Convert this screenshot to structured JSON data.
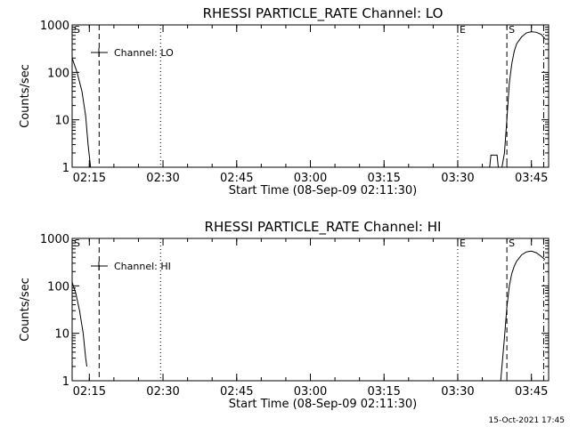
{
  "footer_timestamp": "15-Oct-2021 17:45",
  "chart_data": [
    {
      "type": "line",
      "title": "RHESSI PARTICLE_RATE Channel: LO",
      "xlabel": "Start Time (08-Sep-09 02:11:30)",
      "ylabel": "Counts/sec",
      "yscale": "log",
      "xlim": [
        "02:11:30",
        "03:48:30"
      ],
      "ylim": [
        1,
        1000
      ],
      "x_ticks": [
        "02:15",
        "02:30",
        "02:45",
        "03:00",
        "03:15",
        "03:30",
        "03:45"
      ],
      "y_ticks": [
        "1",
        "10",
        "100",
        "1000"
      ],
      "legend": {
        "label": "Channel: LO",
        "placement": "top-left"
      },
      "markers": [
        {
          "label": "S",
          "time": "02:11:30",
          "style": "dashed"
        },
        {
          "label": "",
          "time": "02:17:00",
          "style": "dashed"
        },
        {
          "label": "",
          "time": "02:29:30",
          "style": "dotted"
        },
        {
          "label": "E",
          "time": "03:30:00",
          "style": "dotted"
        },
        {
          "label": "S",
          "time": "03:40:00",
          "style": "dashed"
        },
        {
          "label": "",
          "time": "03:47:30",
          "style": "dashdot"
        }
      ],
      "series": [
        {
          "segments": [
            {
              "x": [
                "02:11:30",
                "02:12:30",
                "02:13:30",
                "02:14:15",
                "02:14:45",
                "02:15:15"
              ],
              "y": [
                200,
                100,
                40,
                12,
                3,
                1
              ]
            },
            {
              "x": [
                "03:36:30",
                "03:36:45",
                "03:37:00",
                "03:38:00",
                "03:38:15",
                "03:38:30"
              ],
              "y": [
                1,
                1.8,
                1.8,
                1.8,
                1,
                1
              ]
            },
            {
              "x": [
                "03:39:00",
                "03:39:30",
                "03:40:00",
                "03:40:30",
                "03:41:00",
                "03:41:30",
                "03:42:00",
                "03:43:00",
                "03:44:00",
                "03:45:00",
                "03:46:00",
                "03:47:00",
                "03:47:45"
              ],
              "y": [
                1,
                2,
                10,
                60,
                150,
                280,
                400,
                560,
                680,
                720,
                700,
                630,
                510
              ]
            }
          ]
        }
      ]
    },
    {
      "type": "line",
      "title": "RHESSI PARTICLE_RATE Channel: HI",
      "xlabel": "Start Time (08-Sep-09 02:11:30)",
      "ylabel": "Counts/sec",
      "yscale": "log",
      "xlim": [
        "02:11:30",
        "03:48:30"
      ],
      "ylim": [
        1,
        1000
      ],
      "x_ticks": [
        "02:15",
        "02:30",
        "02:45",
        "03:00",
        "03:15",
        "03:30",
        "03:45"
      ],
      "y_ticks": [
        "1",
        "10",
        "100",
        "1000"
      ],
      "legend": {
        "label": "Channel: HI",
        "placement": "top-left"
      },
      "markers": [
        {
          "label": "S",
          "time": "02:11:30",
          "style": "dashed"
        },
        {
          "label": "",
          "time": "02:17:00",
          "style": "dashed"
        },
        {
          "label": "",
          "time": "02:29:30",
          "style": "dotted"
        },
        {
          "label": "E",
          "time": "03:30:00",
          "style": "dotted"
        },
        {
          "label": "S",
          "time": "03:40:00",
          "style": "dashed"
        },
        {
          "label": "",
          "time": "03:47:30",
          "style": "dashdot"
        }
      ],
      "series": [
        {
          "segments": [
            {
              "x": [
                "02:11:30",
                "02:12:15",
                "02:13:00",
                "02:13:45",
                "02:14:15",
                "02:14:30"
              ],
              "y": [
                120,
                70,
                30,
                10,
                3,
                2
              ]
            },
            {
              "x": [
                "03:38:45",
                "03:39:00",
                "03:39:30",
                "03:40:00",
                "03:40:30",
                "03:41:00",
                "03:41:30",
                "03:42:00",
                "03:43:00",
                "03:44:00",
                "03:45:00",
                "03:46:00",
                "03:47:00",
                "03:47:45"
              ],
              "y": [
                1,
                2,
                8,
                35,
                100,
                180,
                260,
                330,
                450,
                520,
                540,
                500,
                420,
                360
              ]
            }
          ]
        }
      ]
    }
  ]
}
